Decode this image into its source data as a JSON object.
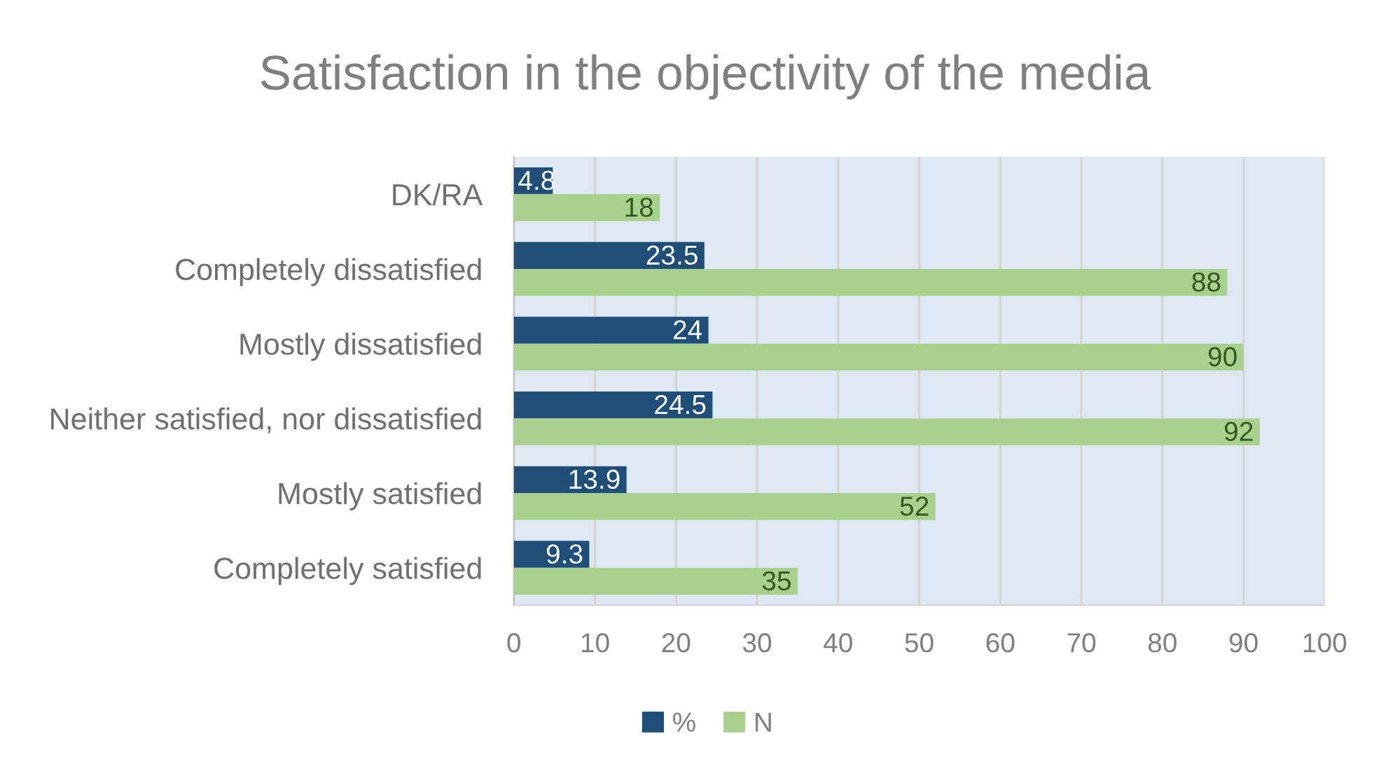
{
  "chart_data": {
    "type": "bar",
    "orientation": "horizontal",
    "title": "Satisfaction in the objectivity of the media",
    "categories": [
      "DK/RA",
      "Completely dissatisfied",
      "Mostly dissatisfied",
      "Neither satisfied, nor dissatisfied",
      "Mostly satisfied",
      "Completely satisfied"
    ],
    "series": [
      {
        "name": "%",
        "color": "#1f4e79",
        "values": [
          4.8,
          23.5,
          24,
          24.5,
          13.9,
          9.3
        ]
      },
      {
        "name": "N",
        "color": "#a9d18e",
        "values": [
          18,
          88,
          90,
          92,
          52,
          35
        ]
      }
    ],
    "xlim": [
      0,
      100
    ],
    "xticks": [
      0,
      10,
      20,
      30,
      40,
      50,
      60,
      70,
      80,
      90,
      100
    ],
    "grid": "x",
    "legend": "bottom",
    "data_labels": true
  }
}
